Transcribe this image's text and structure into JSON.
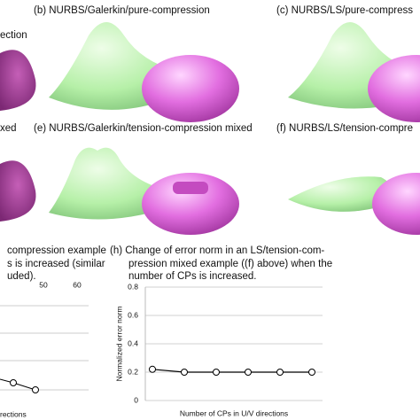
{
  "panels": {
    "a_fragment": "ection",
    "b": "(b) NURBS/Galerkin/pure-compression",
    "c": "(c) NURBS/LS/pure-compress",
    "d_fragment": "xed",
    "e": "(e) NURBS/Galerkin/tension-compression mixed",
    "f": "(f) NURBS/LS/tension-compre"
  },
  "chart_g": {
    "caption": [
      "compression example",
      "s is increased (similar",
      "uded)."
    ],
    "top_ticks": [
      "50",
      "60"
    ],
    "x_label": "rections"
  },
  "chart_h": {
    "type": "line",
    "caption": [
      "(h) Change of error norm in an LS/tension-com-",
      "pression mixed example ((f) above) when the",
      "number of CPs is increased."
    ],
    "x_label": "Number of CPs in U/V directions",
    "y_label": "Normalized error norm",
    "x": [
      12,
      21,
      30,
      39,
      48,
      57
    ],
    "values": [
      0.22,
      0.2,
      0.2,
      0.2,
      0.2,
      0.2
    ],
    "xlim": [
      10,
      60
    ],
    "ylim": [
      0,
      0.8
    ],
    "yticks": [
      0,
      0.2,
      0.4,
      0.6,
      0.8
    ],
    "grid": true,
    "color": "#000000"
  }
}
